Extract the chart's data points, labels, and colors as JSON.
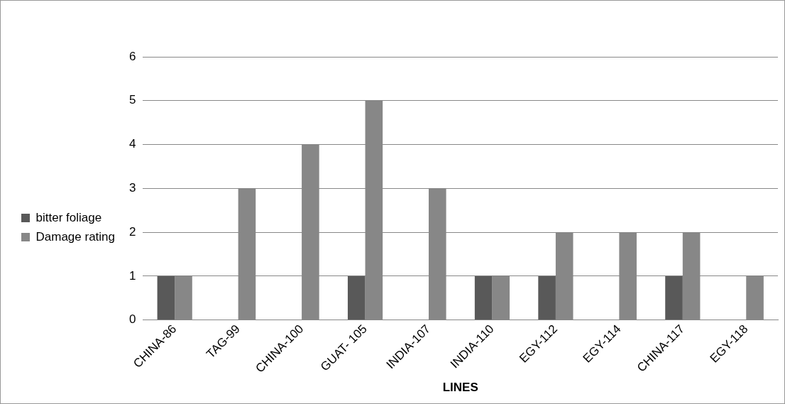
{
  "chart_data": {
    "type": "bar",
    "xlabel": "LINES",
    "categories": [
      "CHINA-86",
      "TAG-99",
      "CHINA-100",
      "GUAT- 105",
      "INDIA-107",
      "INDIA-110",
      "EGY-112",
      "EGY-114",
      "CHINA-117",
      "EGY-118"
    ],
    "series": [
      {
        "name": "bitter foliage",
        "color": "#595959",
        "values": [
          1,
          0,
          0,
          1,
          0,
          1,
          1,
          0,
          1,
          0
        ]
      },
      {
        "name": "Damage rating",
        "color": "#878787",
        "values": [
          1,
          3,
          4,
          5,
          3,
          1,
          2,
          2,
          2,
          1
        ]
      }
    ],
    "ylim": [
      0,
      6
    ],
    "yticks": [
      0,
      1,
      2,
      3,
      4,
      5,
      6
    ],
    "grid": "y",
    "legend": "left"
  }
}
